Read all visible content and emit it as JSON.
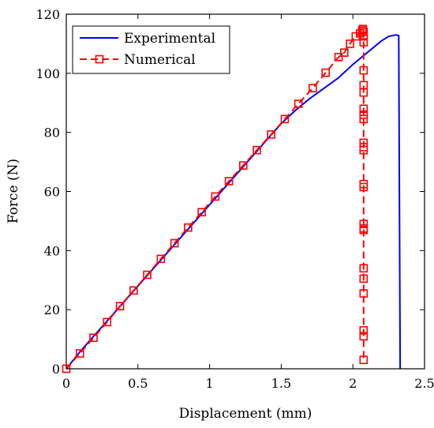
{
  "chart_data": {
    "type": "line",
    "xlabel": "Displacement (mm)",
    "ylabel": "Force (N)",
    "xlim": [
      0,
      2.5
    ],
    "ylim": [
      0,
      120
    ],
    "xticks": [
      0,
      0.5,
      1,
      1.5,
      2,
      2.5
    ],
    "xtick_labels": [
      "0",
      "0.5",
      "1",
      "1.5",
      "2",
      "2.5"
    ],
    "yticks": [
      0,
      20,
      40,
      60,
      80,
      100,
      120
    ],
    "ytick_labels": [
      "0",
      "20",
      "40",
      "60",
      "80",
      "100",
      "120"
    ],
    "grid": false,
    "legend_position": "top-left",
    "series": [
      {
        "name": "Experimental",
        "color": "#0000ff",
        "line_style": "solid",
        "marker": "none",
        "x": [
          0,
          0.1,
          0.2,
          0.3,
          0.4,
          0.5,
          0.6,
          0.7,
          0.8,
          0.9,
          1.0,
          1.1,
          1.2,
          1.3,
          1.4,
          1.5,
          1.6,
          1.7,
          1.8,
          1.9,
          2.0,
          2.1,
          2.2,
          2.25,
          2.3,
          2.32,
          2.325,
          2.33
        ],
        "y": [
          0,
          6,
          11.5,
          17,
          22.5,
          28,
          33.5,
          39,
          44.5,
          50,
          55.5,
          61,
          66.5,
          72,
          77.5,
          83,
          87.5,
          91.5,
          95,
          98.5,
          103,
          107,
          111,
          112.5,
          113,
          112.8,
          55,
          0
        ]
      },
      {
        "name": "Numerical",
        "color": "#ff0000",
        "line_style": "dashed",
        "marker": "square",
        "x": [
          0,
          0.095,
          0.19,
          0.285,
          0.375,
          0.47,
          0.565,
          0.66,
          0.755,
          0.85,
          0.945,
          1.04,
          1.135,
          1.235,
          1.33,
          1.43,
          1.525,
          1.62,
          1.72,
          1.81,
          1.9,
          1.94,
          1.98,
          2.02,
          2.05,
          2.065,
          2.07,
          2.075,
          2.075,
          2.075,
          2.075,
          2.075,
          2.075,
          2.075,
          2.075,
          2.075,
          2.075,
          2.075,
          2.075,
          2.075,
          2.075,
          2.075,
          2.075,
          2.075,
          2.075,
          2.075,
          2.075,
          2.075,
          2.075,
          2.075
        ],
        "y": [
          0,
          5.2,
          10.5,
          15.8,
          21.2,
          26.5,
          31.8,
          37.2,
          42.5,
          47.8,
          53,
          58.3,
          63.5,
          68.8,
          74,
          79.3,
          84.5,
          89.7,
          95,
          100.2,
          105.5,
          107,
          110,
          112.5,
          113.5,
          114.5,
          115,
          114,
          112.5,
          110.5,
          101,
          96,
          93.5,
          88,
          86,
          84.5,
          76.5,
          75,
          74,
          62.5,
          61.5,
          49,
          47.5,
          47,
          34,
          30.5,
          25.5,
          13,
          11,
          3
        ]
      }
    ]
  }
}
